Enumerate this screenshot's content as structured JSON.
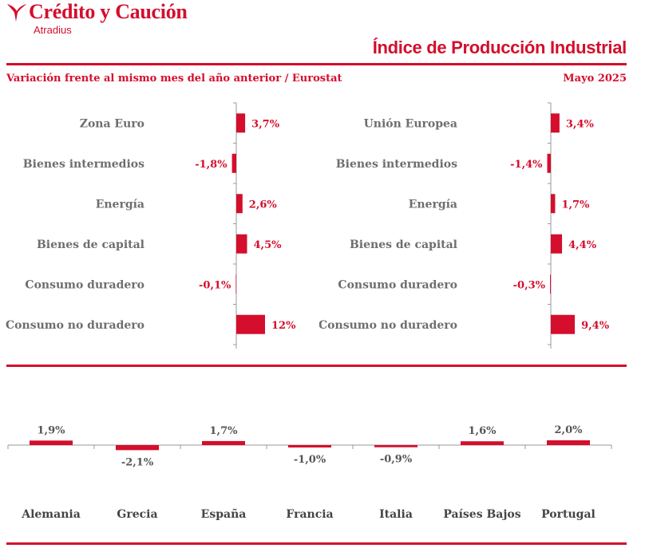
{
  "header": {
    "brand_name": "Crédito y Caución",
    "brand_sub": "Atradius",
    "report_title": "Índice de Producción Industrial",
    "subtitle": "Variación frente al mismo mes del año anterior / Eurostat",
    "date": "Mayo 2025"
  },
  "colors": {
    "accent": "#d40e2c",
    "axis": "#999999",
    "category_text": "#6e6e6e"
  },
  "chart_data": [
    {
      "type": "bar",
      "orientation": "horizontal",
      "categories": [
        "Zona Euro",
        "Bienes intermedios",
        "Energía",
        "Bienes de capital",
        "Consumo duradero",
        "Consumo no duradero"
      ],
      "values": [
        3.7,
        -1.8,
        2.6,
        4.5,
        -0.1,
        12
      ],
      "labels": [
        "3,7%",
        "-1,8%",
        "2,6%",
        "4,5%",
        "-0,1%",
        "12%"
      ]
    },
    {
      "type": "bar",
      "orientation": "horizontal",
      "categories": [
        "Unión Europea",
        "Bienes intermedios",
        "Energía",
        "Bienes de capital",
        "Consumo duradero",
        "Consumo no duradero"
      ],
      "values": [
        3.4,
        -1.4,
        1.7,
        4.4,
        -0.3,
        9.4
      ],
      "labels": [
        "3,4%",
        "-1,4%",
        "1,7%",
        "4,4%",
        "-0,3%",
        "9,4%"
      ]
    },
    {
      "type": "bar",
      "orientation": "vertical",
      "categories": [
        "Alemania",
        "Grecia",
        "España",
        "Francia",
        "Italia",
        "Países Bajos",
        "Portugal"
      ],
      "values": [
        1.9,
        -2.1,
        1.7,
        -1.0,
        -0.9,
        1.6,
        2.0
      ],
      "labels": [
        "1,9%",
        "-2,1%",
        "1,7%",
        "-1,0%",
        "-0,9%",
        "1,6%",
        "2,0%"
      ]
    }
  ]
}
